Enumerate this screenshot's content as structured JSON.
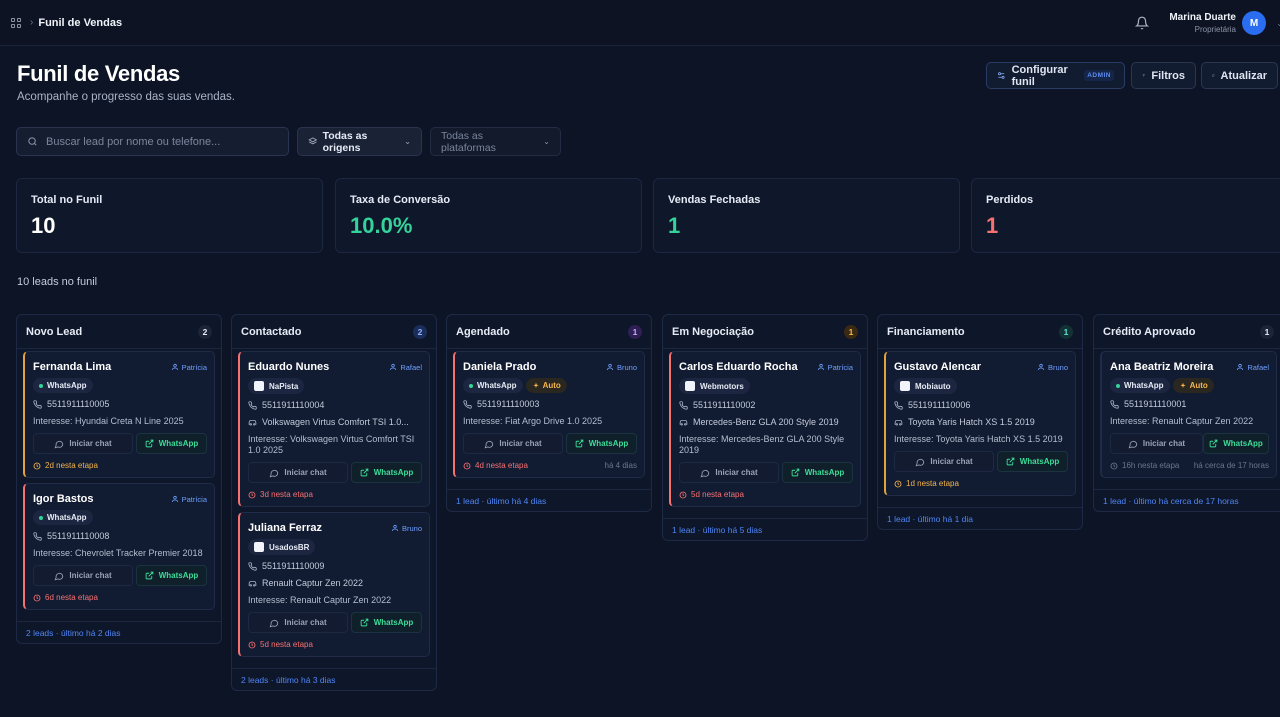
{
  "header": {
    "breadcrumb": "Funil de Vendas",
    "user_name": "Marina Duarte",
    "user_role": "Proprietária",
    "avatar_initial": "M"
  },
  "page": {
    "title": "Funil de Vendas",
    "subtitle": "Acompanhe o progresso das suas vendas."
  },
  "toolbar": {
    "config_label": "Configurar funil",
    "admin_badge": "ADMIN",
    "filters_label": "Filtros",
    "refresh_label": "Atualizar"
  },
  "filters": {
    "search_placeholder": "Buscar lead por nome ou telefone...",
    "origin_value": "Todas as origens",
    "platform_value": "Todas as plataformas"
  },
  "stats": [
    {
      "label": "Total no Funil",
      "value": "10"
    },
    {
      "label": "Taxa de Conversão",
      "value": "10.0%"
    },
    {
      "label": "Vendas Fechadas",
      "value": "1"
    },
    {
      "label": "Perdidos",
      "value": "1"
    }
  ],
  "leads_summary": "10 leads no funil",
  "colors": {
    "accent": "#2a6df0",
    "success": "#34d399",
    "danger": "#f87171",
    "warning": "#e3a33b"
  },
  "columns": [
    {
      "title": "Novo Lead",
      "count": "2",
      "footer": "2 leads · último há 2 dias",
      "badge_bg": "#1c2438",
      "badge_fg": "#e6ebf5",
      "cards": [
        {
          "name": "Fernanda Lima",
          "agent": "Patrícia",
          "tags": [
            {
              "label": "WhatsApp",
              "kind": "dot"
            }
          ],
          "phone": "5511911110005",
          "interest": "Interesse: Hyundai Creta N Line 2025",
          "chat": "Iniciar chat",
          "wa": "WhatsApp",
          "time": "2d nesta etapa",
          "accent": "#e3a33b"
        },
        {
          "name": "Igor Bastos",
          "agent": "Patrícia",
          "tags": [
            {
              "label": "WhatsApp",
              "kind": "dot"
            }
          ],
          "phone": "5511911110008",
          "interest": "Interesse: Chevrolet Tracker Premier 2018",
          "chat": "Iniciar chat",
          "wa": "WhatsApp",
          "time": "6d nesta etapa",
          "accent": "#f87171"
        }
      ]
    },
    {
      "title": "Contactado",
      "count": "2",
      "footer": "2 leads · último há 3 dias",
      "badge_bg": "#1b2d5a",
      "badge_fg": "#8fb2ff",
      "cards": [
        {
          "name": "Eduardo Nunes",
          "agent": "Rafael",
          "tags": [
            {
              "label": "NaPista",
              "kind": "sq"
            }
          ],
          "phone": "5511911110004",
          "vehicle": "Volkswagen Virtus Comfort TSI 1.0...",
          "interest": "Interesse: Volkswagen Virtus Comfort TSI 1.0 2025",
          "chat": "Iniciar chat",
          "wa": "WhatsApp",
          "time": "3d nesta etapa",
          "accent": "#f87171"
        },
        {
          "name": "Juliana Ferraz",
          "agent": "Bruno",
          "tags": [
            {
              "label": "UsadosBR",
              "kind": "sq"
            }
          ],
          "phone": "5511911110009",
          "vehicle": "Renault Captur Zen 2022",
          "interest": "Interesse: Renault Captur Zen 2022",
          "chat": "Iniciar chat",
          "wa": "WhatsApp",
          "time": "5d nesta etapa",
          "accent": "#f87171"
        }
      ]
    },
    {
      "title": "Agendado",
      "count": "1",
      "footer": "1 lead · último há 4 dias",
      "badge_bg": "#2e1f55",
      "badge_fg": "#c4a8ff",
      "cards": [
        {
          "name": "Daniela Prado",
          "agent": "Bruno",
          "tags": [
            {
              "label": "WhatsApp",
              "kind": "dot"
            },
            {
              "label": "Auto",
              "kind": "auto"
            }
          ],
          "phone": "5511911110003",
          "interest": "Interesse: Fiat Argo Drive 1.0 2025",
          "chat": "Iniciar chat",
          "wa": "WhatsApp",
          "time": "4d nesta etapa",
          "time_right": "há 4 dias",
          "accent": "#f87171"
        }
      ]
    },
    {
      "title": "Em Negociação",
      "count": "1",
      "footer": "1 lead · último há 5 dias",
      "badge_bg": "#3a2a14",
      "badge_fg": "#f5b64b",
      "cards": [
        {
          "name": "Carlos Eduardo Rocha",
          "agent": "Patrícia",
          "tags": [
            {
              "label": "Webmotors",
              "kind": "sq"
            }
          ],
          "phone": "5511911110002",
          "vehicle": "Mercedes-Benz GLA 200 Style 2019",
          "interest": "Interesse: Mercedes-Benz GLA 200 Style 2019",
          "chat": "Iniciar chat",
          "wa": "WhatsApp",
          "time": "5d nesta etapa",
          "accent": "#f87171"
        }
      ]
    },
    {
      "title": "Financiamento",
      "count": "1",
      "footer": "1 lead · último há 1 dia",
      "badge_bg": "#133236",
      "badge_fg": "#5ee0d0",
      "cards": [
        {
          "name": "Gustavo Alencar",
          "agent": "Bruno",
          "tags": [
            {
              "label": "Mobiauto",
              "kind": "sq"
            }
          ],
          "phone": "5511911110006",
          "vehicle": "Toyota Yaris Hatch XS 1.5 2019",
          "interest": "Interesse: Toyota Yaris Hatch XS 1.5 2019",
          "chat": "Iniciar chat",
          "wa": "WhatsApp",
          "time": "1d nesta etapa",
          "accent": "#e3a33b"
        }
      ]
    },
    {
      "title": "Crédito Aprovado",
      "count": "1",
      "footer": "1 lead · último há cerca de 17 horas",
      "badge_bg": "#1c2438",
      "badge_fg": "#e6ebf5",
      "cards": [
        {
          "name": "Ana Beatriz Moreira",
          "agent": "Rafael",
          "tags": [
            {
              "label": "WhatsApp",
              "kind": "dot"
            },
            {
              "label": "Auto",
              "kind": "auto"
            }
          ],
          "phone": "5511911110001",
          "interest": "Interesse: Renault Captur Zen 2022",
          "chat": "Iniciar chat",
          "wa": "WhatsApp",
          "time": "16h nesta etapa",
          "time_right": "há cerca de 17 horas",
          "accent": "#1f2b47"
        }
      ]
    }
  ]
}
